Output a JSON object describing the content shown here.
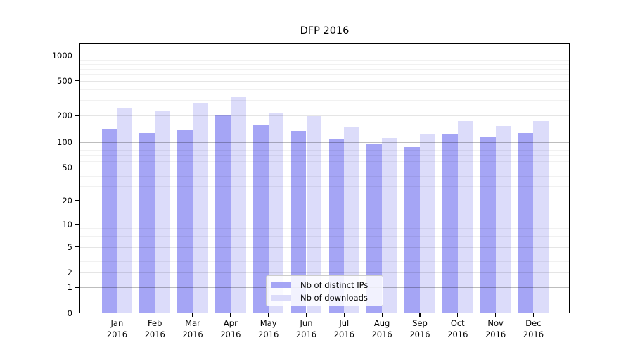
{
  "chart_data": {
    "type": "bar",
    "title": "DFP 2016",
    "scale": "symlog",
    "grid": "major+minor",
    "legend_position": "lower center",
    "categories": [
      "Jan",
      "Feb",
      "Mar",
      "Apr",
      "May",
      "Jun",
      "Jul",
      "Aug",
      "Sep",
      "Oct",
      "Nov",
      "Dec"
    ],
    "category_year": "2016",
    "yticks": [
      0,
      1,
      2,
      5,
      10,
      20,
      50,
      100,
      200,
      500,
      1000
    ],
    "ylim": [
      0,
      1400
    ],
    "series": [
      {
        "name": "Nb of distinct IPs",
        "color": "#a5a5f5",
        "values": [
          140,
          127,
          136,
          206,
          157,
          134,
          109,
          95,
          87,
          125,
          116,
          126
        ]
      },
      {
        "name": "Nb of downloads",
        "color": "#dcdcfa",
        "values": [
          240,
          223,
          277,
          325,
          216,
          197,
          149,
          111,
          122,
          172,
          152,
          174
        ]
      }
    ]
  }
}
